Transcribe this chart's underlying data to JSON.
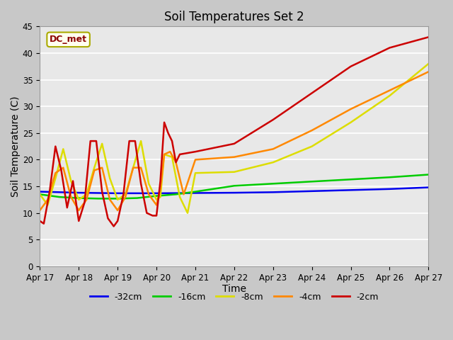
{
  "title": "Soil Temperatures Set 2",
  "xlabel": "Time",
  "ylabel": "Soil Temperature (C)",
  "ylim": [
    0,
    45
  ],
  "xlim": [
    0,
    10
  ],
  "annotation_text": "DC_met",
  "annotation_color": "#8b0000",
  "annotation_bg": "#ffffee",
  "tick_labels": [
    "Apr 17",
    "Apr 18",
    "Apr 19",
    "Apr 20",
    "Apr 21",
    "Apr 22",
    "Apr 23",
    "Apr 24",
    "Apr 25",
    "Apr 26",
    "Apr 27"
  ],
  "series": {
    "-32cm": {
      "color": "#0000ee",
      "linewidth": 1.8,
      "x": [
        0,
        0.5,
        1.0,
        1.5,
        2.0,
        2.5,
        3.0,
        4.0,
        5.0,
        6.0,
        7.0,
        8.0,
        9.0,
        10.0
      ],
      "y": [
        14.0,
        13.9,
        13.8,
        13.75,
        13.7,
        13.7,
        13.7,
        13.75,
        13.8,
        13.9,
        14.1,
        14.3,
        14.5,
        14.8
      ]
    },
    "-16cm": {
      "color": "#00cc00",
      "linewidth": 1.8,
      "x": [
        0,
        0.5,
        1.0,
        1.5,
        2.0,
        2.5,
        3.0,
        3.5,
        4.0,
        5.0,
        6.0,
        7.0,
        8.0,
        9.0,
        10.0
      ],
      "y": [
        13.5,
        13.0,
        12.8,
        12.7,
        12.7,
        12.8,
        13.2,
        13.5,
        14.0,
        15.1,
        15.5,
        15.9,
        16.3,
        16.7,
        17.2
      ]
    },
    "-8cm": {
      "color": "#dddd00",
      "linewidth": 1.8,
      "x": [
        0,
        0.2,
        0.4,
        0.6,
        0.8,
        1.0,
        1.2,
        1.4,
        1.6,
        1.8,
        2.0,
        2.2,
        2.4,
        2.6,
        2.8,
        3.0,
        3.1,
        3.2,
        3.4,
        3.6,
        3.8,
        4.0,
        5.0,
        6.0,
        7.0,
        8.0,
        9.0,
        10.0
      ],
      "y": [
        13.5,
        11.5,
        16.5,
        22.0,
        16.0,
        12.5,
        13.5,
        18.5,
        23.0,
        16.5,
        12.5,
        13.5,
        18.5,
        23.5,
        15.5,
        12.5,
        13.0,
        21.0,
        20.5,
        13.0,
        10.0,
        17.5,
        17.7,
        19.5,
        22.5,
        27.0,
        32.0,
        38.0
      ]
    },
    "-4cm": {
      "color": "#ff8800",
      "linewidth": 1.8,
      "x": [
        0,
        0.2,
        0.4,
        0.6,
        0.8,
        1.0,
        1.2,
        1.4,
        1.6,
        1.8,
        2.0,
        2.2,
        2.4,
        2.6,
        2.8,
        3.0,
        3.1,
        3.2,
        3.35,
        3.5,
        3.7,
        4.0,
        5.0,
        6.0,
        7.0,
        8.0,
        9.0,
        10.0
      ],
      "y": [
        10.5,
        12.5,
        17.5,
        18.5,
        13.0,
        10.5,
        12.5,
        18.0,
        18.5,
        12.5,
        10.5,
        13.0,
        18.5,
        18.5,
        13.5,
        11.5,
        14.5,
        21.0,
        21.5,
        19.5,
        13.5,
        20.0,
        20.5,
        22.0,
        25.5,
        29.5,
        33.0,
        36.5
      ]
    },
    "-2cm": {
      "color": "#cc0000",
      "linewidth": 1.8,
      "x": [
        0,
        0.1,
        0.25,
        0.4,
        0.55,
        0.7,
        0.85,
        1.0,
        1.15,
        1.3,
        1.45,
        1.6,
        1.75,
        1.9,
        2.0,
        2.15,
        2.3,
        2.45,
        2.6,
        2.75,
        2.9,
        3.0,
        3.1,
        3.2,
        3.3,
        3.4,
        3.5,
        3.6,
        4.0,
        5.0,
        6.0,
        7.0,
        8.0,
        9.0,
        10.0
      ],
      "y": [
        8.5,
        8.0,
        14.0,
        22.5,
        18.0,
        11.0,
        16.0,
        8.5,
        12.0,
        23.5,
        23.5,
        14.0,
        9.0,
        7.5,
        8.5,
        13.5,
        23.5,
        23.5,
        15.5,
        10.0,
        9.5,
        9.5,
        16.0,
        27.0,
        25.0,
        23.5,
        19.5,
        21.0,
        21.5,
        23.0,
        27.5,
        32.5,
        37.5,
        41.0,
        43.0
      ]
    }
  },
  "legend": [
    {
      "label": "-32cm",
      "color": "#0000ee"
    },
    {
      "label": "-16cm",
      "color": "#00cc00"
    },
    {
      "label": "-8cm",
      "color": "#dddd00"
    },
    {
      "label": "-4cm",
      "color": "#ff8800"
    },
    {
      "label": "-2cm",
      "color": "#cc0000"
    }
  ]
}
